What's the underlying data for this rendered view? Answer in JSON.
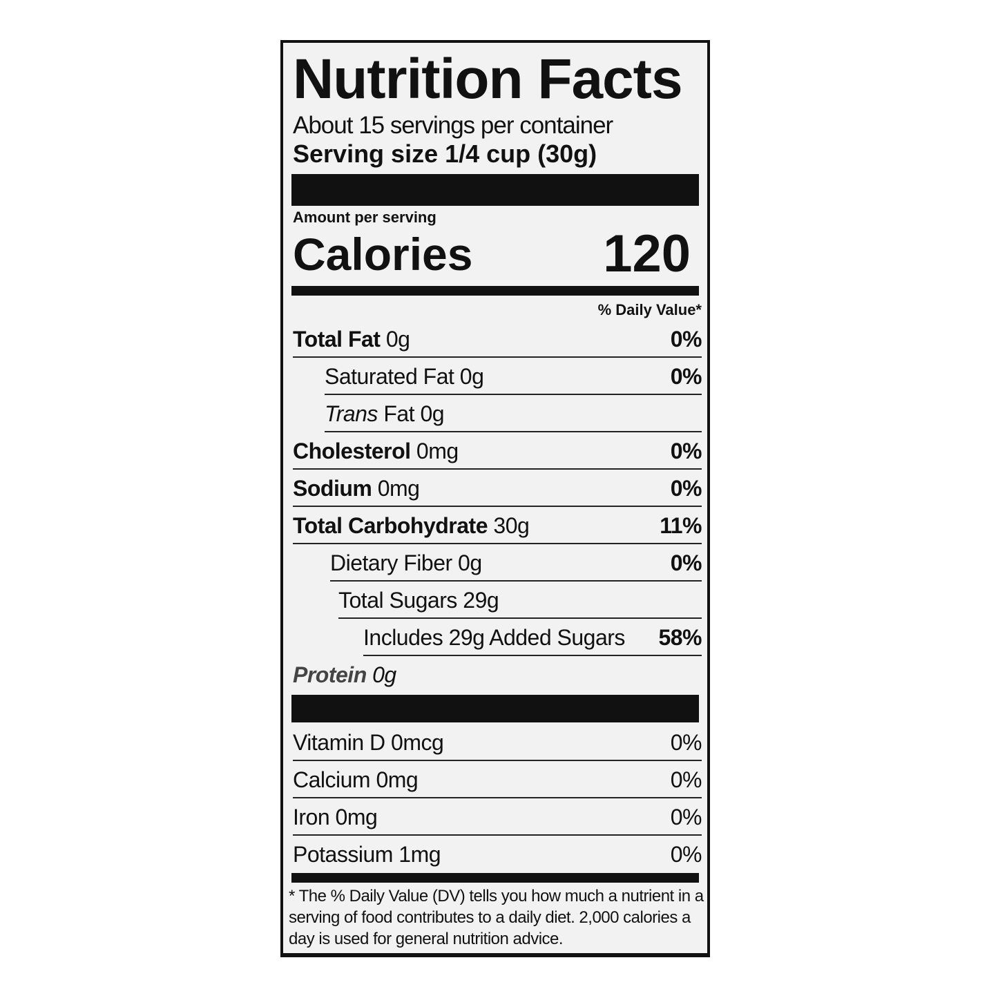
{
  "label": {
    "title": "Nutrition Facts",
    "servings_per_container": "About 15 servings per container",
    "serving_size": "Serving size 1/4 cup (30g)",
    "amount_per_serving": "Amount per serving",
    "calories_label": "Calories",
    "calories_value": "120",
    "daily_value_header": "% Daily Value*",
    "nutrients": [
      {
        "name": "Total Fat",
        "amount": "0g",
        "dv": "0%"
      },
      {
        "name": "Saturated Fat",
        "amount": "0g",
        "dv": "0%"
      },
      {
        "name": "Trans",
        "name_rest": "Fat",
        "amount": "0g",
        "dv": ""
      },
      {
        "name": "Cholesterol",
        "amount": "0mg",
        "dv": "0%"
      },
      {
        "name": "Sodium",
        "amount": "0mg",
        "dv": "0%"
      },
      {
        "name": "Total Carbohydrate",
        "amount": "30g",
        "dv": "11%"
      },
      {
        "name": "Dietary Fiber",
        "amount": "0g",
        "dv": "0%"
      },
      {
        "name": "Total Sugars",
        "amount": "29g",
        "dv": ""
      },
      {
        "name": "Includes 29g Added Sugars",
        "amount": "",
        "dv": "58%"
      },
      {
        "name": "Protein",
        "amount": "0g",
        "dv": ""
      }
    ],
    "vitamins": [
      {
        "name": "Vitamin D",
        "amount": "0mcg",
        "dv": "0%"
      },
      {
        "name": "Calcium",
        "amount": "0mg",
        "dv": "0%"
      },
      {
        "name": "Iron",
        "amount": "0mg",
        "dv": "0%"
      },
      {
        "name": "Potassium",
        "amount": "1mg",
        "dv": "0%"
      }
    ],
    "footnote": "* The % Daily Value (DV) tells you how much a nutrient in a serving of food contributes to a daily diet. 2,000 calories a day is used for general nutrition advice."
  }
}
